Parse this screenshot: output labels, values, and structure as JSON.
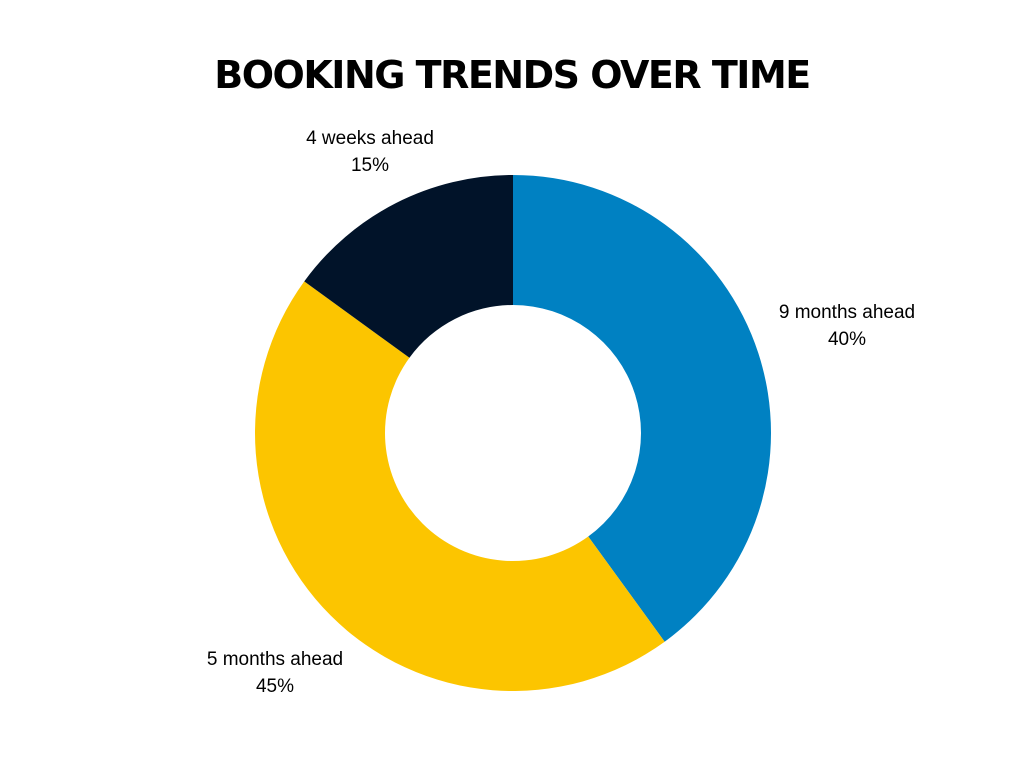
{
  "chart_data": {
    "type": "pie",
    "variant": "donut",
    "title": "BOOKING TRENDS OVER TIME",
    "categories": [
      "9 months ahead",
      "5 months ahead",
      "4 weeks ahead"
    ],
    "values": [
      40,
      45,
      15
    ],
    "value_labels": [
      "40%",
      "45%",
      "15%"
    ],
    "colors": [
      "#0081c2",
      "#fcc500",
      "#011329"
    ],
    "start_angle": "12 o'clock",
    "direction": "clockwise",
    "legend": "none"
  }
}
